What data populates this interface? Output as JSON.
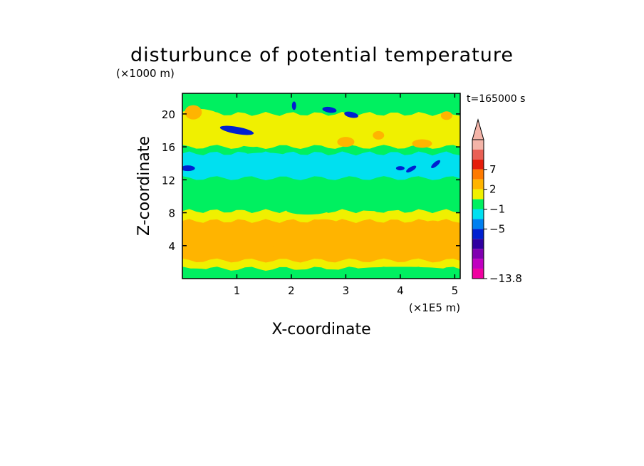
{
  "chart_data": {
    "type": "heatmap",
    "title": "disturbunce of potential temperature",
    "time_label": "t=165000 s",
    "xlabel": "X-coordinate",
    "ylabel": "Z-coordinate",
    "x_unit": "(×1E5 m)",
    "y_unit": "(×1000 m)",
    "xlim": [
      0,
      5.1
    ],
    "ylim": [
      0,
      22.5
    ],
    "x_ticks": [
      "1",
      "2",
      "3",
      "4",
      "5"
    ],
    "y_ticks": [
      "4",
      "8",
      "12",
      "16",
      "20"
    ],
    "x_tick_values": [
      1,
      2,
      3,
      4,
      5
    ],
    "y_tick_values": [
      4,
      8,
      12,
      16,
      20
    ],
    "colorbar": {
      "min_label": "−13.8",
      "tick_labels": [
        "7",
        "2",
        "−1",
        "−5",
        "−13.8"
      ],
      "colors_top_to_bottom": [
        "#f4b4a8",
        "#e96055",
        "#e51d0b",
        "#ff7a00",
        "#ffb400",
        "#f0f000",
        "#00f060",
        "#00e0f0",
        "#0080f0",
        "#0020d0",
        "#3000a0",
        "#8000b0",
        "#c000c0",
        "#f000a0"
      ]
    },
    "levels": {
      "deep_negative": "#0020d0",
      "negative_strong": "#0080f0",
      "negative": "#00e0f0",
      "near_zero": "#00f060",
      "positive_small": "#f0f000",
      "positive": "#ffb400",
      "positive_strong": "#ff7a00"
    }
  }
}
